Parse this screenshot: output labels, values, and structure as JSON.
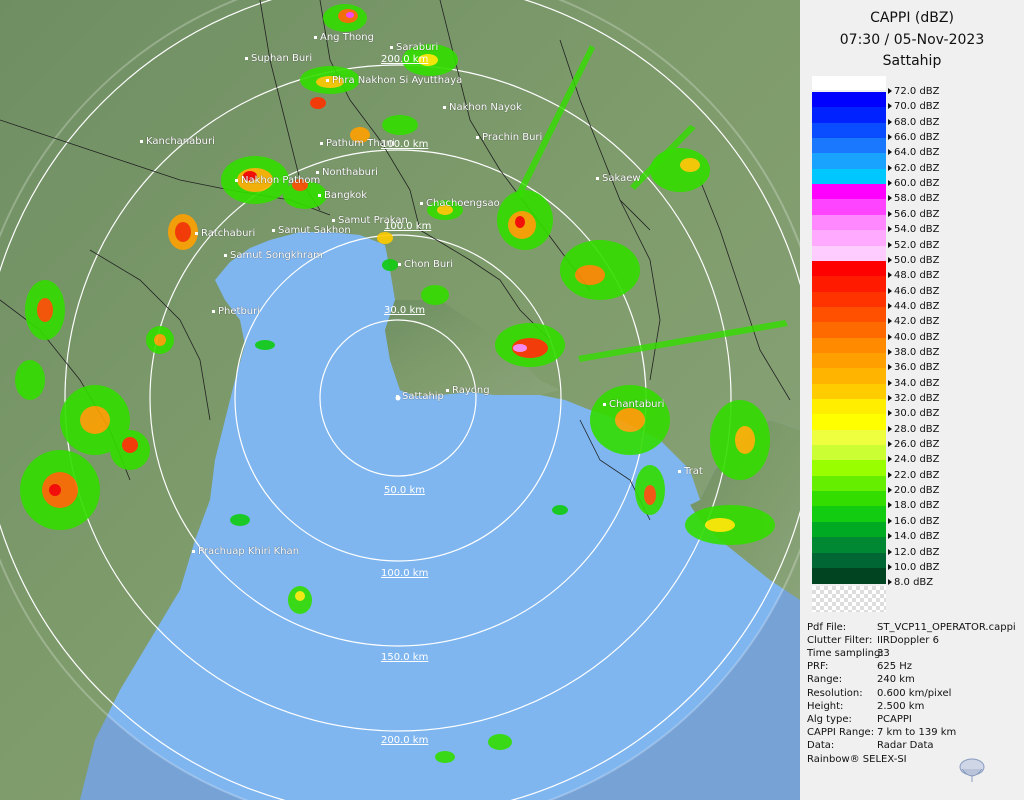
{
  "header": {
    "product": "CAPPI (dBZ)",
    "datetime": "07:30 / 05-Nov-2023",
    "station": "Sattahip"
  },
  "legend": [
    {
      "label": "72.0 dBZ",
      "color": "#ffffff"
    },
    {
      "label": "70.0 dBZ",
      "color": "#0000ff"
    },
    {
      "label": "68.0 dBZ",
      "color": "#0022ff"
    },
    {
      "label": "66.0 dBZ",
      "color": "#0a4cff"
    },
    {
      "label": "64.0 dBZ",
      "color": "#1a78ff"
    },
    {
      "label": "62.0 dBZ",
      "color": "#1aa2ff"
    },
    {
      "label": "60.0 dBZ",
      "color": "#00c8ff"
    },
    {
      "label": "58.0 dBZ",
      "color": "#ff00ff"
    },
    {
      "label": "56.0 dBZ",
      "color": "#ff44ff"
    },
    {
      "label": "54.0 dBZ",
      "color": "#ff88ff"
    },
    {
      "label": "52.0 dBZ",
      "color": "#ffaaff"
    },
    {
      "label": "50.0 dBZ",
      "color": "#ffccff"
    },
    {
      "label": "48.0 dBZ",
      "color": "#ff0000"
    },
    {
      "label": "46.0 dBZ",
      "color": "#ff1a00"
    },
    {
      "label": "44.0 dBZ",
      "color": "#ff3300"
    },
    {
      "label": "42.0 dBZ",
      "color": "#ff5000"
    },
    {
      "label": "40.0 dBZ",
      "color": "#ff6a00"
    },
    {
      "label": "38.0 dBZ",
      "color": "#ff8a00"
    },
    {
      "label": "36.0 dBZ",
      "color": "#ffa000"
    },
    {
      "label": "34.0 dBZ",
      "color": "#ffb400"
    },
    {
      "label": "32.0 dBZ",
      "color": "#ffcc00"
    },
    {
      "label": "30.0 dBZ",
      "color": "#ffee00"
    },
    {
      "label": "28.0 dBZ",
      "color": "#ffff00"
    },
    {
      "label": "26.0 dBZ",
      "color": "#eeff40"
    },
    {
      "label": "24.0 dBZ",
      "color": "#ccff33"
    },
    {
      "label": "22.0 dBZ",
      "color": "#99ff00"
    },
    {
      "label": "20.0 dBZ",
      "color": "#66ee00"
    },
    {
      "label": "18.0 dBZ",
      "color": "#33dd00"
    },
    {
      "label": "16.0 dBZ",
      "color": "#11cc11"
    },
    {
      "label": "14.0 dBZ",
      "color": "#00aa22"
    },
    {
      "label": "12.0 dBZ",
      "color": "#008833"
    },
    {
      "label": "10.0 dBZ",
      "color": "#006633"
    },
    {
      "label": "8.0 dBZ",
      "color": "#004422"
    }
  ],
  "info": [
    {
      "key": "Pdf File:",
      "value": "ST_VCP11_OPERATOR.cappi"
    },
    {
      "key": "Clutter Filter:",
      "value": "IIRDoppler 6"
    },
    {
      "key": "Time sampling:",
      "value": "33"
    },
    {
      "key": "PRF:",
      "value": "625 Hz"
    },
    {
      "key": "Range:",
      "value": "240 km"
    },
    {
      "key": "Resolution:",
      "value": "0.600 km/pixel"
    },
    {
      "key": "Height:",
      "value": "2.500 km"
    },
    {
      "key": "Alg type:",
      "value": "PCAPPI"
    },
    {
      "key": "CAPPI Range:",
      "value": "7 km to 139 km"
    },
    {
      "key": "Data:",
      "value": "Radar Data"
    }
  ],
  "footer": "Rainbow® SELEX-SI",
  "rings": [
    "50.0 km",
    "100.0 km",
    "150.0 km",
    "200.0 km"
  ],
  "inner_rings": [
    "30.0 km",
    "100.0 km",
    "200.0 km"
  ],
  "cities": [
    "Ang Thong",
    "Saraburi",
    "Suphan Buri",
    "Phra Nakhon Si Ayutthaya",
    "Nakhon Nayok",
    "Kanchanaburi",
    "Pathum Thani",
    "Prachin Buri",
    "Nonthaburi",
    "Nakhon Pathom",
    "Sakaew",
    "Bangkok",
    "Chachoengsao",
    "Samut Prakan",
    "Ratchaburi",
    "Samut Sakhon",
    "Samut Songkhram",
    "Chon Buri",
    "Phetburi",
    "Sattahip",
    "Rayong",
    "Chantaburi",
    "Trat",
    "Prachuap Khiri Khan"
  ]
}
